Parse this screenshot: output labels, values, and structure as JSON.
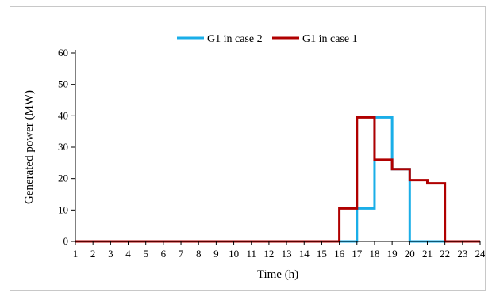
{
  "chart_data": {
    "type": "line",
    "step": true,
    "xlabel": "Time (h)",
    "ylabel": "Generated power (MW)",
    "xlim": [
      1,
      24
    ],
    "ylim": [
      0,
      60
    ],
    "x_ticks": [
      "1",
      "2",
      "3",
      "4",
      "5",
      "6",
      "7",
      "8",
      "9",
      "10",
      "11",
      "12",
      "13",
      "14",
      "15",
      "16",
      "17",
      "18",
      "19",
      "20",
      "21",
      "22",
      "23",
      "24"
    ],
    "y_ticks": [
      "0",
      "10",
      "20",
      "30",
      "40",
      "50",
      "60"
    ],
    "grid": false,
    "legend_position": "top",
    "series": [
      {
        "name": "G1 in case 2",
        "color": "#1aaee8",
        "x": [
          1,
          2,
          3,
          4,
          5,
          6,
          7,
          8,
          9,
          10,
          11,
          12,
          13,
          14,
          15,
          16,
          17,
          18,
          19,
          20,
          21,
          22,
          23,
          24
        ],
        "values": [
          0,
          0,
          0,
          0,
          0,
          0,
          0,
          0,
          0,
          0,
          0,
          0,
          0,
          0,
          0,
          0,
          10.5,
          39.5,
          23,
          0,
          0,
          0,
          0,
          0
        ]
      },
      {
        "name": "G1 in case 1",
        "color": "#b00000",
        "x": [
          1,
          2,
          3,
          4,
          5,
          6,
          7,
          8,
          9,
          10,
          11,
          12,
          13,
          14,
          15,
          16,
          17,
          18,
          19,
          20,
          21,
          22,
          23,
          24
        ],
        "values": [
          0,
          0,
          0,
          0,
          0,
          0,
          0,
          0,
          0,
          0,
          0,
          0,
          0,
          0,
          0,
          10.5,
          39.5,
          26,
          23,
          19.5,
          18.5,
          0,
          0,
          0
        ]
      }
    ]
  }
}
